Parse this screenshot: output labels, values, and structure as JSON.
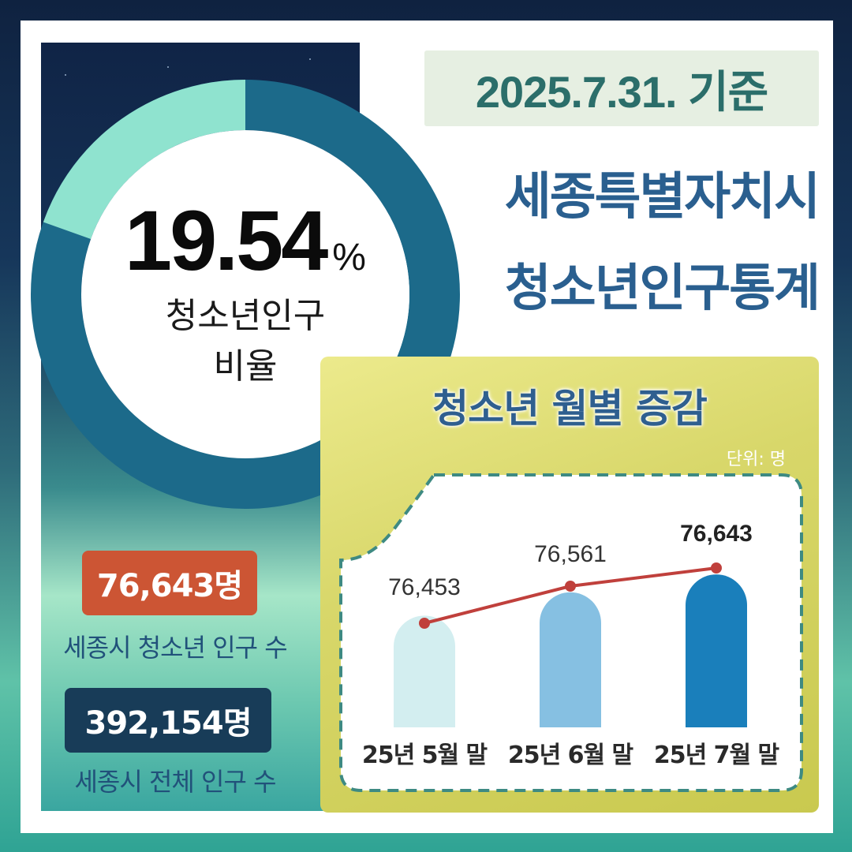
{
  "date_label": "2025.7.31. 기준",
  "title": {
    "line1": "세종특별자치시",
    "line2": "청소년인구통계"
  },
  "ratio": {
    "value": "19.54",
    "unit": "%",
    "label_line1": "청소년인구",
    "label_line2": "비율",
    "fraction": 0.1954
  },
  "youth_population": {
    "value": "76,643명",
    "caption": "세종시 청소년 인구 수"
  },
  "total_population": {
    "value": "392,154명",
    "caption": "세종시 전체 인구 수"
  },
  "chart_title": "청소년 월별 증감",
  "chart_unit": "단위: 명",
  "colors": {
    "donut_main": "#1c6a8a",
    "donut_accent": "#8fe3cf",
    "line": "#c0403c",
    "bar_1": "#d3eef0",
    "bar_2": "#86c0e2",
    "bar_3": "#1a7fbb"
  },
  "chart_data": {
    "type": "bar",
    "categories": [
      "25년 5월 말",
      "25년 6월 말",
      "25년 7월 말"
    ],
    "values": [
      76453,
      76561,
      76643
    ],
    "value_labels": [
      "76,453",
      "76,561",
      "76,643"
    ],
    "overlay": "line"
  }
}
